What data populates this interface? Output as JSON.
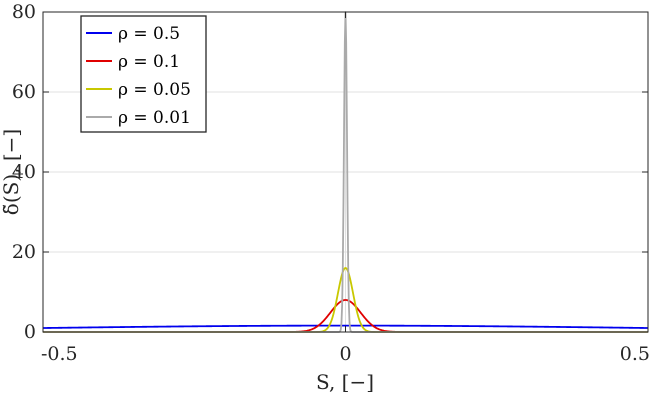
{
  "chart_data": {
    "type": "line",
    "title": "",
    "xlabel": "S, [−]",
    "ylabel": "δ̃(S), [−]",
    "xlim": [
      -0.5,
      0.5
    ],
    "ylim": [
      0,
      80
    ],
    "xticks": [
      -0.5,
      0,
      0.5
    ],
    "xtick_labels": [
      "-0.5",
      "0",
      "0.5"
    ],
    "yticks": [
      0,
      20,
      40,
      60,
      80
    ],
    "ytick_labels": [
      "0",
      "20",
      "40",
      "60",
      "80"
    ],
    "grid": true,
    "legend_position": "top-left",
    "series": [
      {
        "name": "ρ = 0.5",
        "color": "#0000ee",
        "rho": 0.5,
        "x": [
          -0.5,
          -0.4,
          -0.3,
          -0.2,
          -0.1,
          0,
          0.1,
          0.2,
          0.3,
          0.4,
          0.5
        ],
        "values": [
          1.0,
          1.2,
          1.4,
          1.5,
          1.6,
          1.6,
          1.6,
          1.5,
          1.4,
          1.2,
          1.0
        ]
      },
      {
        "name": "ρ = 0.1",
        "color": "#e00000",
        "rho": 0.1,
        "x": [
          -0.3,
          -0.2,
          -0.15,
          -0.1,
          -0.05,
          0,
          0.05,
          0.1,
          0.15,
          0.2,
          0.3
        ],
        "values": [
          0.1,
          1.1,
          2.6,
          4.8,
          7.0,
          8.0,
          7.0,
          4.8,
          2.6,
          1.1,
          0.1
        ]
      },
      {
        "name": "ρ = 0.05",
        "color": "#c8c800",
        "rho": 0.05,
        "x": [
          -0.15,
          -0.1,
          -0.075,
          -0.05,
          -0.025,
          0,
          0.025,
          0.05,
          0.075,
          0.1,
          0.15
        ],
        "values": [
          0.2,
          2.2,
          5.2,
          9.7,
          14.1,
          16.0,
          14.1,
          9.7,
          5.2,
          2.2,
          0.2
        ]
      },
      {
        "name": "ρ = 0.01",
        "color": "#aaaaaa",
        "rho": 0.01,
        "x": [
          -0.03,
          -0.02,
          -0.015,
          -0.01,
          -0.005,
          0,
          0.005,
          0.01,
          0.015,
          0.02,
          0.03
        ],
        "values": [
          0.9,
          10.8,
          25.9,
          48.5,
          70.6,
          80.0,
          70.6,
          48.5,
          25.9,
          10.8,
          0.9
        ]
      }
    ]
  }
}
